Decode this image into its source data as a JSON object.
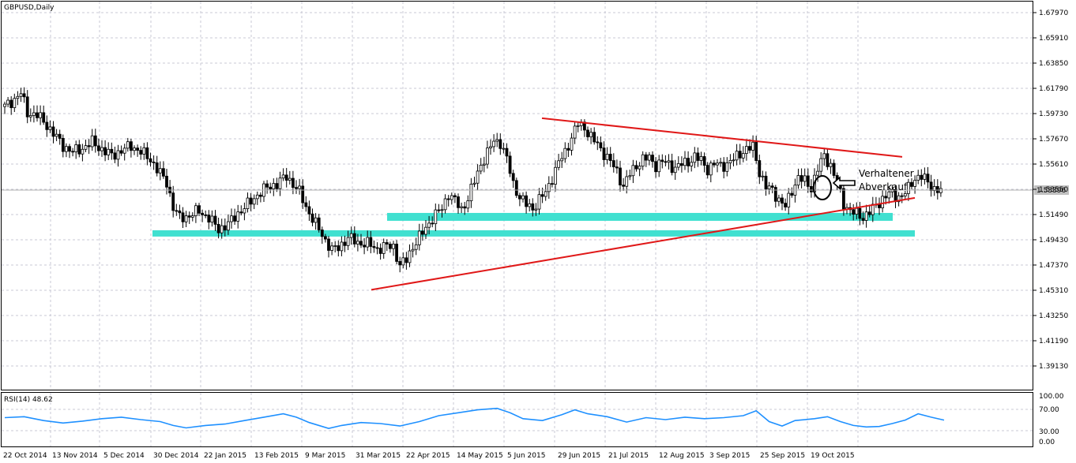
{
  "window": {
    "title": "GBPUSD,Daily"
  },
  "colors": {
    "grid": "#c8c8d4",
    "candle": "#000000",
    "bull_body": "#ffffff",
    "bear_body": "#000000",
    "trendline": "#e01818",
    "support_zone": "#40e0d0",
    "rsi_line": "#1e90ff",
    "price_label_bg": "#c0c0c0"
  },
  "annotation": {
    "line1": "Verhaltener",
    "line2": "Abverkauf",
    "icons": [
      "circle-highlight",
      "arrow-left-icon"
    ]
  },
  "rsi": {
    "label": "RSI(14) 48.62",
    "levels": [
      "100.00",
      "70.00",
      "30.00",
      "0.00"
    ]
  },
  "chart_data": {
    "type": "candlestick",
    "symbol": "GBPUSD",
    "timeframe": "Daily",
    "ylim": [
      1.375,
      1.69
    ],
    "y_ticks": [
      "1.67970",
      "1.65910",
      "1.63850",
      "1.61790",
      "1.59730",
      "1.57670",
      "1.55610",
      "1.53550",
      "1.51490",
      "1.49430",
      "1.47370",
      "1.45310",
      "1.43250",
      "1.41190",
      "1.39130"
    ],
    "current_price": "1.53396",
    "x_ticks": [
      "22 Oct 2014",
      "13 Nov 2014",
      "5 Dec 2014",
      "30 Dec 2014",
      "22 Jan 2015",
      "13 Feb 2015",
      "9 Mar 2015",
      "31 Mar 2015",
      "22 Apr 2015",
      "14 May 2015",
      "5 Jun 2015",
      "29 Jun 2015",
      "21 Jul 2015",
      "12 Aug 2015",
      "3 Sep 2015",
      "25 Sep 2015",
      "19 Oct 2015"
    ],
    "close_path": [
      [
        0,
        1.603
      ],
      [
        3,
        1.609
      ],
      [
        5,
        1.614
      ],
      [
        7,
        1.598
      ],
      [
        10,
        1.596
      ],
      [
        13,
        1.588
      ],
      [
        15,
        1.581
      ],
      [
        18,
        1.571
      ],
      [
        21,
        1.566
      ],
      [
        24,
        1.569
      ],
      [
        27,
        1.574
      ],
      [
        30,
        1.568
      ],
      [
        33,
        1.563
      ],
      [
        36,
        1.567
      ],
      [
        39,
        1.571
      ],
      [
        42,
        1.566
      ],
      [
        45,
        1.56
      ],
      [
        47,
        1.552
      ],
      [
        50,
        1.541
      ],
      [
        52,
        1.521
      ],
      [
        54,
        1.512
      ],
      [
        57,
        1.514
      ],
      [
        60,
        1.518
      ],
      [
        63,
        1.512
      ],
      [
        66,
        1.503
      ],
      [
        69,
        1.507
      ],
      [
        72,
        1.516
      ],
      [
        75,
        1.523
      ],
      [
        78,
        1.531
      ],
      [
        81,
        1.537
      ],
      [
        84,
        1.54
      ],
      [
        87,
        1.546
      ],
      [
        89,
        1.54
      ],
      [
        91,
        1.533
      ],
      [
        93,
        1.521
      ],
      [
        96,
        1.507
      ],
      [
        99,
        1.494
      ],
      [
        101,
        1.486
      ],
      [
        103,
        1.488
      ],
      [
        106,
        1.496
      ],
      [
        109,
        1.492
      ],
      [
        112,
        1.491
      ],
      [
        115,
        1.487
      ],
      [
        118,
        1.489
      ],
      [
        120,
        1.489
      ],
      [
        122,
        1.473
      ],
      [
        124,
        1.478
      ],
      [
        126,
        1.489
      ],
      [
        129,
        1.5
      ],
      [
        132,
        1.512
      ],
      [
        135,
        1.52
      ],
      [
        137,
        1.532
      ],
      [
        139,
        1.526
      ],
      [
        141,
        1.519
      ],
      [
        143,
        1.528
      ],
      [
        145,
        1.542
      ],
      [
        147,
        1.556
      ],
      [
        149,
        1.565
      ],
      [
        151,
        1.575
      ],
      [
        153,
        1.574
      ],
      [
        155,
        1.56
      ],
      [
        157,
        1.54
      ],
      [
        159,
        1.529
      ],
      [
        161,
        1.523
      ],
      [
        163,
        1.52
      ],
      [
        165,
        1.527
      ],
      [
        167,
        1.533
      ],
      [
        169,
        1.545
      ],
      [
        171,
        1.557
      ],
      [
        173,
        1.566
      ],
      [
        175,
        1.578
      ],
      [
        177,
        1.589
      ],
      [
        179,
        1.586
      ],
      [
        181,
        1.578
      ],
      [
        183,
        1.572
      ],
      [
        185,
        1.565
      ],
      [
        187,
        1.558
      ],
      [
        189,
        1.55
      ],
      [
        191,
        1.538
      ],
      [
        193,
        1.548
      ],
      [
        195,
        1.555
      ],
      [
        197,
        1.56
      ],
      [
        199,
        1.561
      ],
      [
        201,
        1.555
      ],
      [
        203,
        1.558
      ],
      [
        205,
        1.556
      ],
      [
        207,
        1.553
      ],
      [
        209,
        1.556
      ],
      [
        211,
        1.558
      ],
      [
        213,
        1.562
      ],
      [
        215,
        1.559
      ],
      [
        217,
        1.552
      ],
      [
        219,
        1.556
      ],
      [
        221,
        1.555
      ],
      [
        223,
        1.556
      ],
      [
        225,
        1.56
      ],
      [
        227,
        1.565
      ],
      [
        229,
        1.568
      ],
      [
        231,
        1.57
      ],
      [
        233,
        1.55
      ],
      [
        235,
        1.537
      ],
      [
        237,
        1.535
      ],
      [
        239,
        1.527
      ],
      [
        241,
        1.521
      ],
      [
        243,
        1.535
      ],
      [
        245,
        1.545
      ],
      [
        247,
        1.542
      ],
      [
        249,
        1.537
      ],
      [
        251,
        1.552
      ],
      [
        253,
        1.563
      ],
      [
        255,
        1.555
      ],
      [
        257,
        1.54
      ],
      [
        259,
        1.524
      ],
      [
        261,
        1.518
      ],
      [
        263,
        1.515
      ],
      [
        265,
        1.513
      ],
      [
        267,
        1.517
      ],
      [
        269,
        1.522
      ],
      [
        271,
        1.528
      ],
      [
        273,
        1.532
      ],
      [
        275,
        1.53
      ],
      [
        277,
        1.53
      ],
      [
        279,
        1.536
      ],
      [
        281,
        1.545
      ],
      [
        283,
        1.546
      ],
      [
        285,
        1.541
      ],
      [
        287,
        1.536
      ],
      [
        289,
        1.534
      ]
    ],
    "trendlines": [
      {
        "from": [
          "5 Jun 2015",
          1.5935
        ],
        "to": [
          "Nov 2015",
          1.562
        ]
      },
      {
        "from": [
          "31 Mar 2015",
          1.4535
        ],
        "to": [
          "Nov 2015",
          1.5285
        ]
      }
    ],
    "support_zones": [
      {
        "price": 1.513,
        "from": "14 Apr 2015",
        "to": "Nov 2015"
      },
      {
        "price": 1.4995,
        "from": "30 Dec 2014",
        "to": "Nov 2015"
      }
    ],
    "rsi_series": {
      "name": "RSI(14)",
      "ylim": [
        0,
        100
      ],
      "values": [
        [
          0,
          54
        ],
        [
          6,
          56
        ],
        [
          12,
          48
        ],
        [
          18,
          43
        ],
        [
          24,
          47
        ],
        [
          30,
          52
        ],
        [
          36,
          55
        ],
        [
          42,
          50
        ],
        [
          48,
          46
        ],
        [
          52,
          38
        ],
        [
          56,
          33
        ],
        [
          62,
          38
        ],
        [
          68,
          41
        ],
        [
          74,
          48
        ],
        [
          80,
          55
        ],
        [
          86,
          62
        ],
        [
          90,
          55
        ],
        [
          94,
          44
        ],
        [
          100,
          32
        ],
        [
          104,
          38
        ],
        [
          110,
          44
        ],
        [
          116,
          42
        ],
        [
          122,
          37
        ],
        [
          128,
          46
        ],
        [
          134,
          58
        ],
        [
          140,
          64
        ],
        [
          146,
          70
        ],
        [
          152,
          73
        ],
        [
          156,
          64
        ],
        [
          160,
          52
        ],
        [
          166,
          48
        ],
        [
          172,
          60
        ],
        [
          176,
          70
        ],
        [
          180,
          62
        ],
        [
          186,
          56
        ],
        [
          192,
          45
        ],
        [
          198,
          54
        ],
        [
          204,
          50
        ],
        [
          210,
          55
        ],
        [
          216,
          52
        ],
        [
          222,
          54
        ],
        [
          228,
          58
        ],
        [
          232,
          68
        ],
        [
          236,
          46
        ],
        [
          240,
          37
        ],
        [
          244,
          48
        ],
        [
          250,
          52
        ],
        [
          254,
          56
        ],
        [
          258,
          46
        ],
        [
          262,
          38
        ],
        [
          266,
          35
        ],
        [
          270,
          36
        ],
        [
          274,
          42
        ],
        [
          278,
          49
        ],
        [
          282,
          62
        ],
        [
          286,
          55
        ],
        [
          290,
          49
        ]
      ]
    }
  }
}
